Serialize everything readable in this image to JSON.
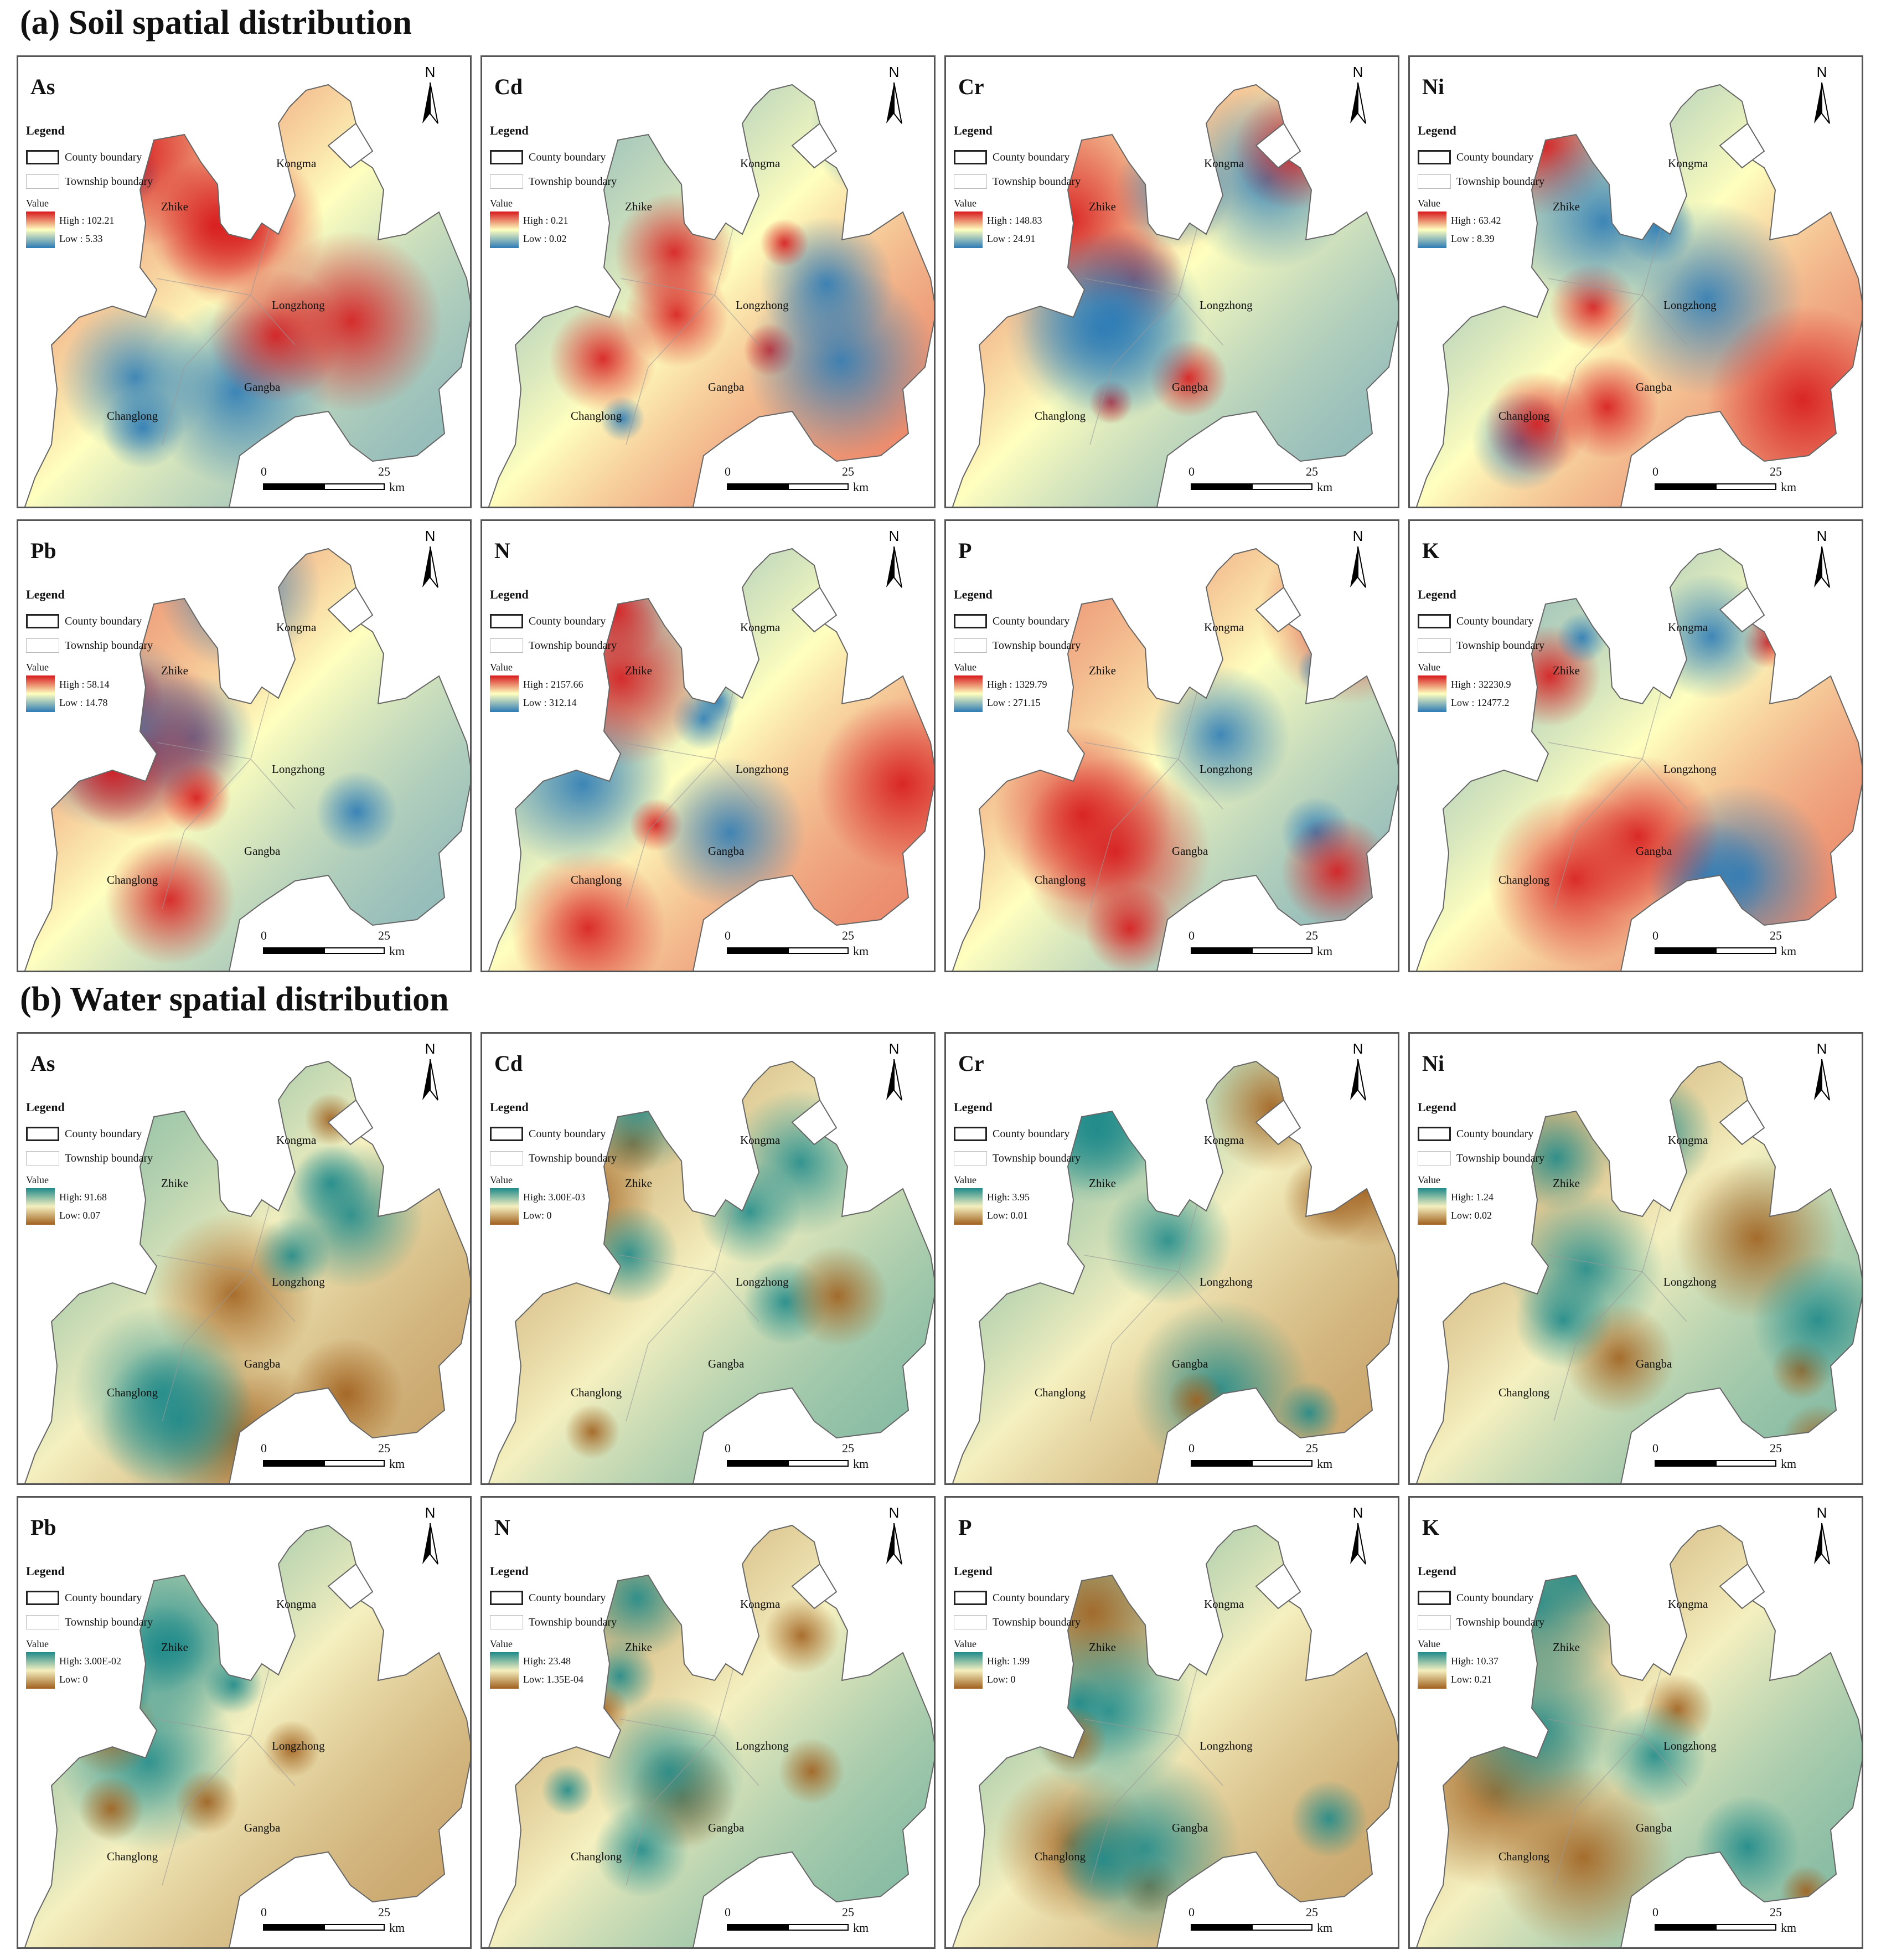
{
  "sections": [
    {
      "title": "(a) Soil spatial distribution"
    },
    {
      "title": "(b) Water spatial distribution"
    }
  ],
  "common": {
    "legend_title": "Legend",
    "county_label": "County boundary",
    "township_label": "Township boundary",
    "value_label": "Value",
    "north_label": "N",
    "scale": {
      "zero": "0",
      "twentyfive": "25",
      "unit": "km"
    },
    "towns": [
      "Zhike",
      "Kongma",
      "Longzhong",
      "Gangba",
      "Changlong"
    ]
  },
  "colors": {
    "soil_high": "#d7191c",
    "soil_mid": "#ffffbf",
    "soil_low": "#2c7bb6",
    "water_high": "#1f8a8a",
    "water_mid": "#f5f0c0",
    "water_low": "#a0601e"
  },
  "panels": [
    {
      "element": "As",
      "high": "High : 102.21",
      "low": "Low : 5.33"
    },
    {
      "element": "Cd",
      "high": "High : 0.21",
      "low": "Low : 0.02"
    },
    {
      "element": "Cr",
      "high": "High : 148.83",
      "low": "Low : 24.91"
    },
    {
      "element": "Ni",
      "high": "High : 63.42",
      "low": "Low : 8.39"
    },
    {
      "element": "Pb",
      "high": "High : 58.14",
      "low": "Low : 14.78"
    },
    {
      "element": "N",
      "high": "High : 2157.66",
      "low": "Low : 312.14"
    },
    {
      "element": "P",
      "high": "High : 1329.79",
      "low": "Low : 271.15"
    },
    {
      "element": "K",
      "high": "High : 32230.9",
      "low": "Low : 12477.2"
    },
    {
      "element": "As",
      "high": "High: 91.68",
      "low": "Low: 0.07"
    },
    {
      "element": "Cd",
      "high": "High: 3.00E-03",
      "low": "Low: 0"
    },
    {
      "element": "Cr",
      "high": "High: 3.95",
      "low": "Low: 0.01"
    },
    {
      "element": "Ni",
      "high": "High: 1.24",
      "low": "Low: 0.02"
    },
    {
      "element": "Pb",
      "high": "High: 3.00E-02",
      "low": "Low: 0"
    },
    {
      "element": "N",
      "high": "High: 23.48",
      "low": "Low: 1.35E-04"
    },
    {
      "element": "P",
      "high": "High: 1.99",
      "low": "Low: 0"
    },
    {
      "element": "K",
      "high": "High: 10.37",
      "low": "Low: 0.21"
    }
  ]
}
